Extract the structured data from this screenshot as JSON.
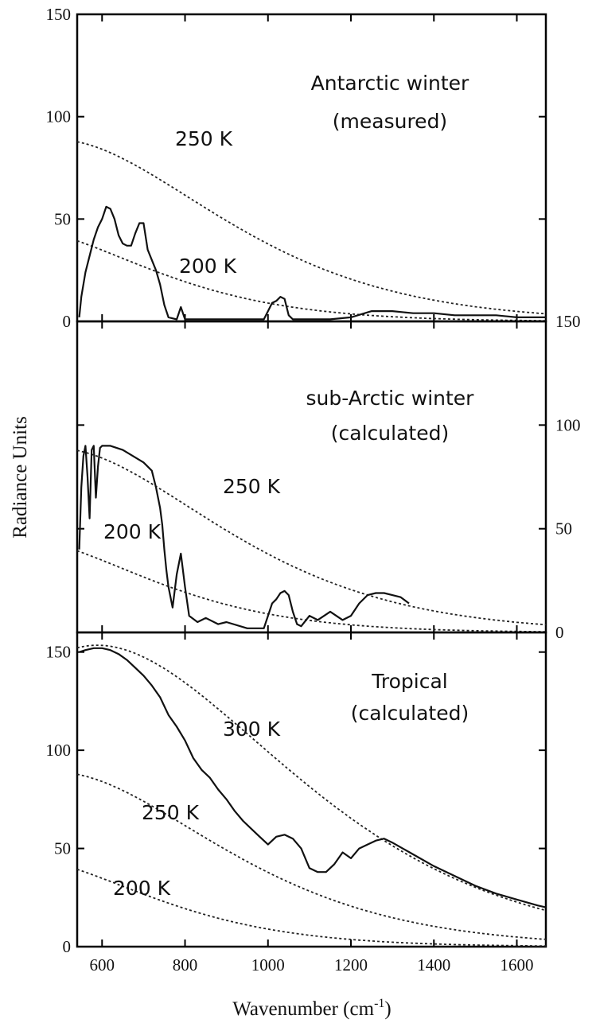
{
  "figure": {
    "ylabel": "Radiance Units",
    "xlabel": "Wavenumber (cm",
    "xlabel_sup": "-1",
    "xlabel_close": ")"
  },
  "chart_data": [
    {
      "type": "line",
      "panel": "top",
      "annotation_lines": [
        "Antarctic winter",
        "(measured)"
      ],
      "xlim": [
        540,
        1670
      ],
      "ylim": [
        0,
        150
      ],
      "y_axis_side": "left",
      "y_ticks": [
        0,
        50,
        100,
        150
      ],
      "x_ticks": [
        600,
        800,
        1000,
        1200,
        1400,
        1600
      ],
      "x_tick_labels_shown": false,
      "blackbody_curves": [
        {
          "label": "250 K",
          "T": 250,
          "style": "dotted"
        },
        {
          "label": "200 K",
          "T": 200,
          "style": "dotted"
        }
      ],
      "series": [
        {
          "values": [
            [
              545,
              2
            ],
            [
              550,
              12
            ],
            [
              560,
              24
            ],
            [
              570,
              32
            ],
            [
              580,
              40
            ],
            [
              590,
              46
            ],
            [
              600,
              50
            ],
            [
              610,
              56
            ],
            [
              620,
              55
            ],
            [
              630,
              50
            ],
            [
              640,
              42
            ],
            [
              650,
              38
            ],
            [
              660,
              37
            ],
            [
              670,
              37
            ],
            [
              680,
              43
            ],
            [
              690,
              48
            ],
            [
              700,
              48
            ],
            [
              710,
              35
            ],
            [
              720,
              30
            ],
            [
              730,
              25
            ],
            [
              740,
              18
            ],
            [
              750,
              8
            ],
            [
              760,
              2
            ],
            [
              780,
              1
            ],
            [
              790,
              7
            ],
            [
              800,
              1
            ],
            [
              900,
              1
            ],
            [
              990,
              1
            ],
            [
              1000,
              5
            ],
            [
              1010,
              9
            ],
            [
              1020,
              10
            ],
            [
              1030,
              12
            ],
            [
              1040,
              11
            ],
            [
              1050,
              3
            ],
            [
              1060,
              1
            ],
            [
              1100,
              1
            ],
            [
              1150,
              1
            ],
            [
              1200,
              2
            ],
            [
              1250,
              5
            ],
            [
              1300,
              5
            ],
            [
              1350,
              4
            ],
            [
              1400,
              4
            ],
            [
              1450,
              3
            ],
            [
              1500,
              3
            ],
            [
              1550,
              3
            ],
            [
              1600,
              2
            ],
            [
              1650,
              2
            ],
            [
              1670,
              2
            ]
          ]
        }
      ]
    },
    {
      "type": "line",
      "panel": "middle",
      "annotation_lines": [
        "sub-Arctic winter",
        "(calculated)"
      ],
      "xlim": [
        540,
        1670
      ],
      "ylim": [
        0,
        150
      ],
      "y_axis_side": "right",
      "y_ticks": [
        0,
        50,
        100,
        150
      ],
      "x_ticks": [
        600,
        800,
        1000,
        1200,
        1400,
        1600
      ],
      "x_tick_labels_shown": false,
      "blackbody_curves": [
        {
          "label": "250 K",
          "T": 250,
          "style": "dotted"
        },
        {
          "label": "200 K",
          "T": 200,
          "style": "dotted"
        }
      ],
      "series": [
        {
          "values": [
            [
              545,
              40
            ],
            [
              550,
              70
            ],
            [
              555,
              85
            ],
            [
              560,
              90
            ],
            [
              565,
              75
            ],
            [
              570,
              55
            ],
            [
              575,
              88
            ],
            [
              580,
              90
            ],
            [
              585,
              65
            ],
            [
              590,
              80
            ],
            [
              595,
              89
            ],
            [
              600,
              90
            ],
            [
              620,
              90
            ],
            [
              650,
              88
            ],
            [
              700,
              82
            ],
            [
              720,
              78
            ],
            [
              730,
              70
            ],
            [
              740,
              60
            ],
            [
              745,
              52
            ],
            [
              750,
              40
            ],
            [
              755,
              30
            ],
            [
              760,
              22
            ],
            [
              770,
              12
            ],
            [
              780,
              28
            ],
            [
              790,
              38
            ],
            [
              800,
              22
            ],
            [
              810,
              8
            ],
            [
              830,
              5
            ],
            [
              850,
              7
            ],
            [
              880,
              4
            ],
            [
              900,
              5
            ],
            [
              950,
              2
            ],
            [
              990,
              2
            ],
            [
              1000,
              8
            ],
            [
              1010,
              14
            ],
            [
              1020,
              16
            ],
            [
              1030,
              19
            ],
            [
              1040,
              20
            ],
            [
              1050,
              18
            ],
            [
              1060,
              10
            ],
            [
              1070,
              4
            ],
            [
              1080,
              3
            ],
            [
              1100,
              8
            ],
            [
              1120,
              6
            ],
            [
              1150,
              10
            ],
            [
              1180,
              6
            ],
            [
              1200,
              8
            ],
            [
              1220,
              14
            ],
            [
              1240,
              18
            ],
            [
              1260,
              19
            ],
            [
              1280,
              19
            ],
            [
              1300,
              18
            ],
            [
              1320,
              17
            ],
            [
              1340,
              14
            ]
          ]
        }
      ]
    },
    {
      "type": "line",
      "panel": "bottom",
      "annotation_lines": [
        "Tropical",
        "(calculated)"
      ],
      "xlim": [
        540,
        1670
      ],
      "ylim": [
        0,
        160
      ],
      "y_axis_side": "left",
      "y_ticks": [
        0,
        50,
        100,
        150
      ],
      "x_ticks": [
        600,
        800,
        1000,
        1200,
        1400,
        1600
      ],
      "x_tick_labels": [
        "600",
        "800",
        "1000",
        "1200",
        "1400",
        "1600"
      ],
      "blackbody_curves": [
        {
          "label": "300 K",
          "T": 300,
          "style": "dotted"
        },
        {
          "label": "250 K",
          "T": 250,
          "style": "dotted"
        },
        {
          "label": "200 K",
          "T": 200,
          "style": "dotted"
        }
      ],
      "series": [
        {
          "values": [
            [
              545,
              150
            ],
            [
              560,
              151
            ],
            [
              580,
              152
            ],
            [
              600,
              152
            ],
            [
              620,
              151
            ],
            [
              640,
              149
            ],
            [
              660,
              146
            ],
            [
              680,
              142
            ],
            [
              700,
              138
            ],
            [
              720,
              133
            ],
            [
              740,
              127
            ],
            [
              760,
              118
            ],
            [
              780,
              112
            ],
            [
              800,
              105
            ],
            [
              820,
              96
            ],
            [
              840,
              90
            ],
            [
              860,
              86
            ],
            [
              880,
              80
            ],
            [
              900,
              75
            ],
            [
              920,
              69
            ],
            [
              940,
              64
            ],
            [
              960,
              60
            ],
            [
              980,
              56
            ],
            [
              1000,
              52
            ],
            [
              1020,
              56
            ],
            [
              1040,
              57
            ],
            [
              1060,
              55
            ],
            [
              1080,
              50
            ],
            [
              1100,
              40
            ],
            [
              1120,
              38
            ],
            [
              1140,
              38
            ],
            [
              1160,
              42
            ],
            [
              1180,
              48
            ],
            [
              1200,
              45
            ],
            [
              1220,
              50
            ],
            [
              1240,
              52
            ],
            [
              1260,
              54
            ],
            [
              1280,
              55
            ],
            [
              1300,
              53
            ],
            [
              1350,
              47
            ],
            [
              1400,
              41
            ],
            [
              1450,
              36
            ],
            [
              1500,
              31
            ],
            [
              1550,
              27
            ],
            [
              1600,
              24
            ],
            [
              1650,
              21
            ],
            [
              1670,
              20
            ]
          ]
        }
      ]
    }
  ]
}
